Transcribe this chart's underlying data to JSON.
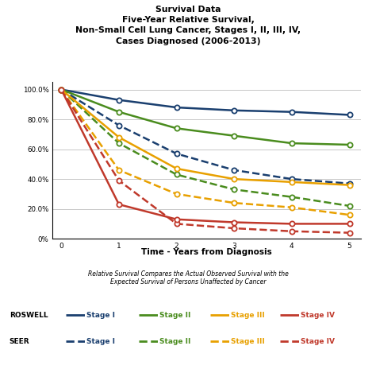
{
  "title_lines": [
    "Survival Data",
    "Five-Year Relative Survival,",
    "Non-Small Cell Lung Cancer, Stages I, II, III, IV,",
    "Cases Diagnosed (2006-2013)"
  ],
  "xlabel": "Time - Years from Diagnosis",
  "footnote": "Relative Survival Compares the Actual Observed Survival with the\nExpected Survival of Persons Unaffected by Cancer",
  "x": [
    0,
    1,
    2,
    3,
    4,
    5
  ],
  "roswell_stage1": [
    100.0,
    93.0,
    88.0,
    86.0,
    85.0,
    83.0
  ],
  "roswell_stage2": [
    100.0,
    85.0,
    74.0,
    69.0,
    64.0,
    63.0
  ],
  "roswell_stage3": [
    100.0,
    68.0,
    47.0,
    40.0,
    38.0,
    36.0
  ],
  "roswell_stage4": [
    100.0,
    23.0,
    13.0,
    11.0,
    10.0,
    10.0
  ],
  "seer_stage1": [
    100.0,
    76.0,
    57.0,
    46.0,
    40.0,
    37.0
  ],
  "seer_stage2": [
    100.0,
    64.0,
    43.0,
    33.0,
    28.0,
    22.0
  ],
  "seer_stage3": [
    100.0,
    46.0,
    30.0,
    24.0,
    21.0,
    16.0
  ],
  "seer_stage4": [
    100.0,
    39.0,
    10.0,
    7.0,
    5.0,
    4.0
  ],
  "color_stage1": "#1a3f6f",
  "color_stage2": "#4a8c1e",
  "color_stage3": "#e8a000",
  "color_stage4": "#c0392b",
  "ylim": [
    0,
    105
  ],
  "yticks": [
    0,
    20,
    40,
    60,
    80,
    100
  ],
  "ytick_labels": [
    "0%",
    "20.0%",
    "40.0%",
    "60.0%",
    "80.0%",
    "100.0%"
  ],
  "xticks": [
    0,
    1,
    2,
    3,
    4,
    5
  ],
  "bg_color": "#ffffff"
}
